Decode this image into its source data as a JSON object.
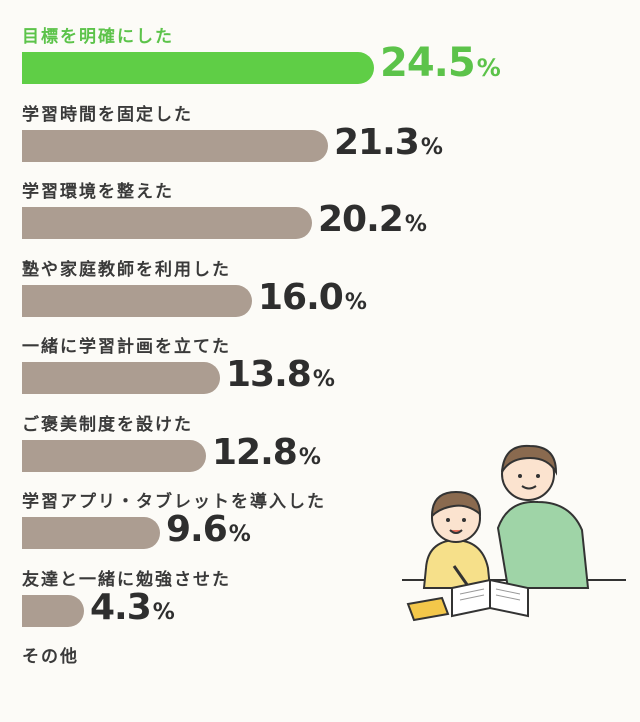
{
  "chart_data": {
    "type": "bar",
    "orientation": "horizontal",
    "categories": [
      "目標を明確にした",
      "学習時間を固定した",
      "学習環境を整えた",
      "塾や家庭教師を利用した",
      "一緒に学習計画を立てた",
      "ご褒美制度を設けた",
      "学習アプリ・タブレットを導入した",
      "友達と一緒に勉強させた",
      "その他"
    ],
    "values": [
      24.5,
      21.3,
      20.2,
      16.0,
      13.8,
      12.8,
      9.6,
      4.3,
      null
    ],
    "value_labels": [
      "24.5",
      "21.3",
      "20.2",
      "16.0",
      "13.8",
      "12.8",
      "9.6",
      "4.3",
      ""
    ],
    "unit": "%",
    "highlight_index": 0,
    "xlim": [
      0,
      24.5
    ]
  },
  "colors": {
    "highlight": "#5fce46",
    "bar": "#ac9d91",
    "background": "#fcfbf7"
  },
  "illustration": "parent-and-child-studying"
}
